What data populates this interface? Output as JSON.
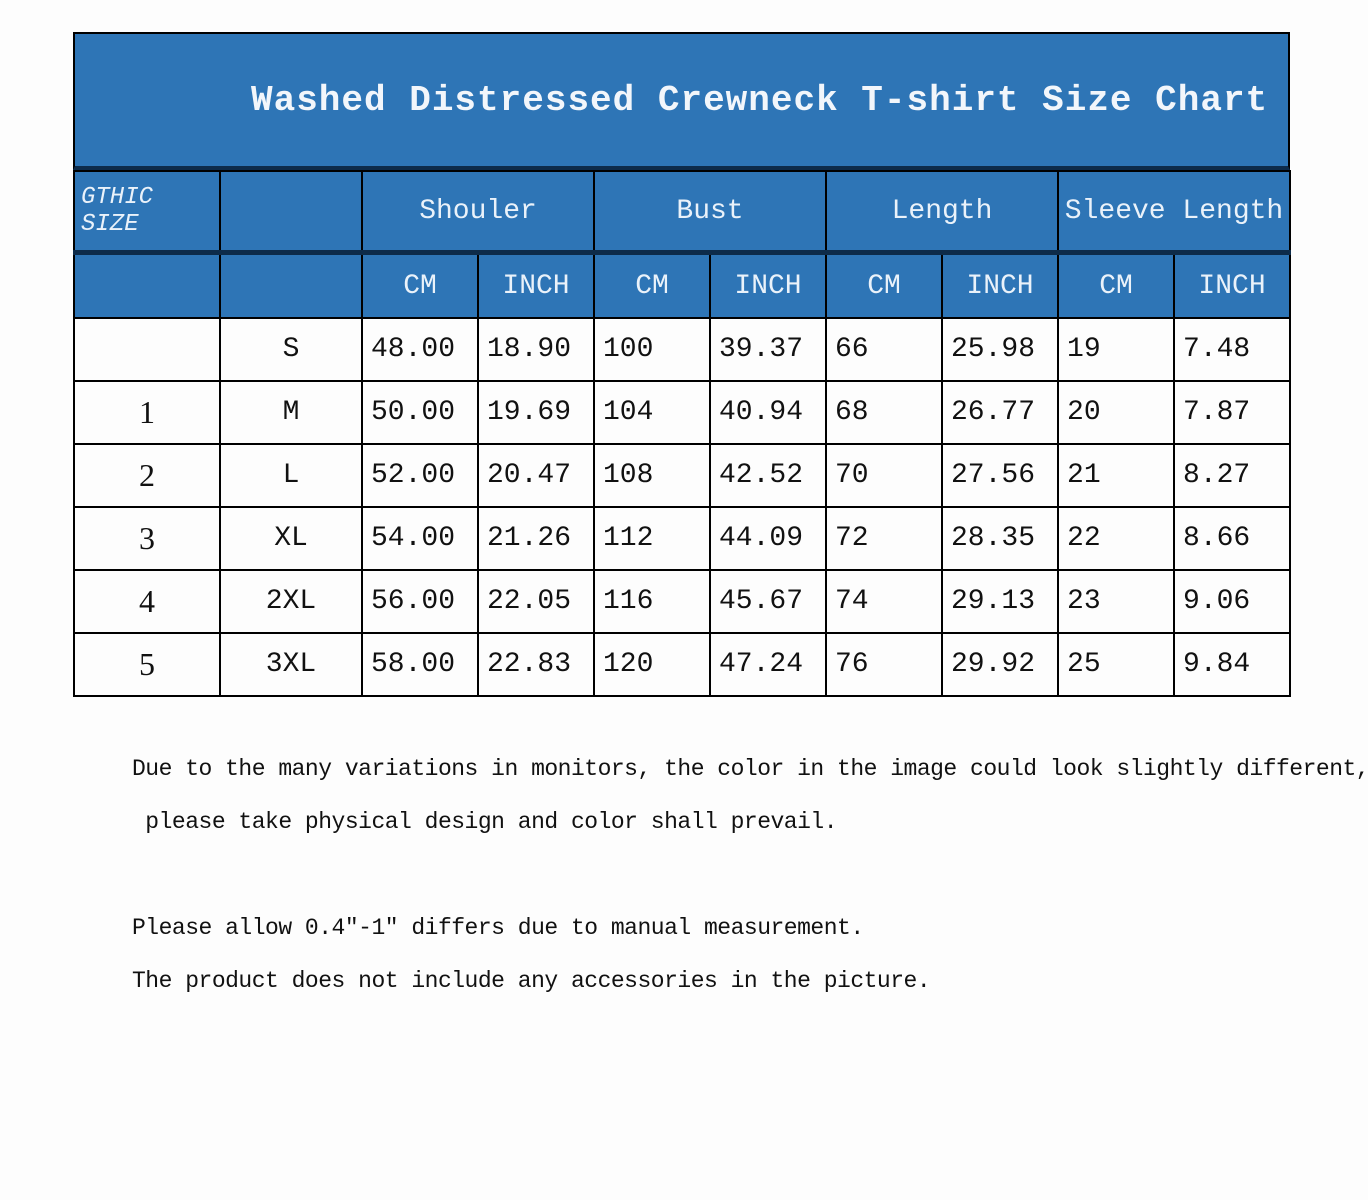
{
  "title": "Washed Distressed Crewneck T-shirt Size Chart",
  "brand_label": "GTHIC SIZE",
  "groups": [
    "Shouler",
    "Bust",
    "Length",
    "Sleeve Length"
  ],
  "units": [
    "CM",
    "INCH",
    "CM",
    "INCH",
    "CM",
    "INCH",
    "CM",
    "INCH"
  ],
  "rows": [
    {
      "idx": "",
      "size": "S",
      "v": [
        "48.00",
        "18.90",
        "100",
        "39.37",
        "66",
        "25.98",
        "19",
        "7.48"
      ]
    },
    {
      "idx": "1",
      "size": "M",
      "v": [
        "50.00",
        "19.69",
        "104",
        "40.94",
        "68",
        "26.77",
        "20",
        "7.87"
      ]
    },
    {
      "idx": "2",
      "size": "L",
      "v": [
        "52.00",
        "20.47",
        "108",
        "42.52",
        "70",
        "27.56",
        "21",
        "8.27"
      ]
    },
    {
      "idx": "3",
      "size": "XL",
      "v": [
        "54.00",
        "21.26",
        "112",
        "44.09",
        "72",
        "28.35",
        "22",
        "8.66"
      ]
    },
    {
      "idx": "4",
      "size": "2XL",
      "v": [
        "56.00",
        "22.05",
        "116",
        "45.67",
        "74",
        "29.13",
        "23",
        "9.06"
      ]
    },
    {
      "idx": "5",
      "size": "3XL",
      "v": [
        "58.00",
        "22.83",
        "120",
        "47.24",
        "76",
        "29.92",
        "25",
        "9.84"
      ]
    }
  ],
  "notes": [
    "Due to the many variations in monitors, the color in the image could look slightly different,",
    " please take physical design and color shall prevail.",
    "",
    "Please allow 0.4\"-1\" differs due to manual measurement.",
    "The product does not include any accessories in the picture."
  ],
  "colors": {
    "header_blue": "#2e75b6"
  }
}
